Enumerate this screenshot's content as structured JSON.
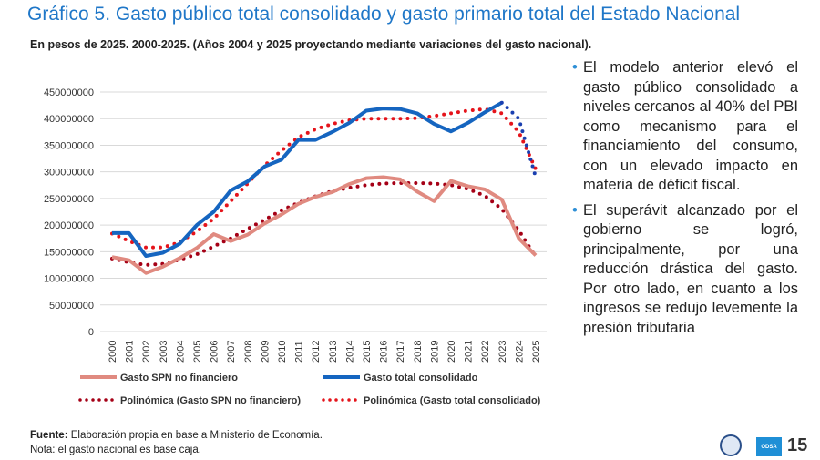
{
  "title": "Gráfico 5. Gasto público total consolidado y gasto primario total del Estado Nacional",
  "subtitle": "En pesos de 2025. 2000-2025. (Años 2004 y 2025 proyectando mediante variaciones del gasto nacional).",
  "bullets": [
    "El modelo anterior elevó el gasto público consolidado a niveles cercanos al 40% del PBI como mecanismo para el financiamiento del consumo, con un elevado impacto en materia de déficit fiscal.",
    "El superávit alcanzado por el gobierno se logró, principalmente, por una reducción drástica del gasto. Por otro lado, en cuanto a los ingresos se redujo levemente la presión tributaria"
  ],
  "footer": {
    "source_label": "Fuente:",
    "source_text": " Elaboración propia en base a Ministerio de Economía.",
    "note": "Nota: el gasto nacional es base caja."
  },
  "logo_text": "ODSA",
  "page_number": "15",
  "chart_data": {
    "type": "line",
    "categories": [
      "2000",
      "2001",
      "2002",
      "2003",
      "2004",
      "2005",
      "2006",
      "2007",
      "2008",
      "2009",
      "2010",
      "2011",
      "2012",
      "2013",
      "2014",
      "2015",
      "2016",
      "2017",
      "2018",
      "2019",
      "2020",
      "2021",
      "2022",
      "2023",
      "2024",
      "2025"
    ],
    "ylim": [
      0,
      450000000
    ],
    "yticks": [
      0,
      50000000,
      100000000,
      150000000,
      200000000,
      250000000,
      300000000,
      350000000,
      400000000,
      450000000
    ],
    "grid": true,
    "legend_position": "bottom",
    "series": [
      {
        "name": "Gasto SPN no financiero",
        "style": "solid",
        "color": "#e08a80",
        "values": [
          140,
          134,
          110,
          122,
          138,
          157,
          183,
          170,
          182,
          203,
          220,
          240,
          253,
          262,
          277,
          288,
          290,
          286,
          263,
          245,
          283,
          273,
          267,
          248,
          175,
          143
        ]
      },
      {
        "name": "Gasto total consolidado",
        "style": "solid-then-dotted",
        "color": "#1565c0",
        "values": [
          185,
          185,
          142,
          148,
          165,
          200,
          225,
          265,
          282,
          310,
          323,
          360,
          360,
          375,
          392,
          415,
          419,
          418,
          410,
          390,
          376,
          392,
          412,
          430,
          400,
          290
        ]
      },
      {
        "name": "Polinómica (Gasto SPN no financiero)",
        "style": "dotted",
        "color": "#a50016",
        "values": [
          137,
          130,
          125,
          127,
          135,
          145,
          160,
          175,
          193,
          210,
          228,
          242,
          254,
          264,
          270,
          275,
          278,
          279,
          279,
          278,
          275,
          268,
          255,
          230,
          190,
          140
        ]
      },
      {
        "name": "Polinómica (Gasto total consolidado)",
        "style": "dotted",
        "color": "#e5141b",
        "values": [
          184,
          170,
          158,
          158,
          168,
          188,
          212,
          245,
          278,
          312,
          340,
          365,
          380,
          390,
          397,
          400,
          400,
          400,
          401,
          405,
          410,
          415,
          418,
          410,
          375,
          305
        ]
      }
    ],
    "value_unit_multiplier": 1000000
  }
}
